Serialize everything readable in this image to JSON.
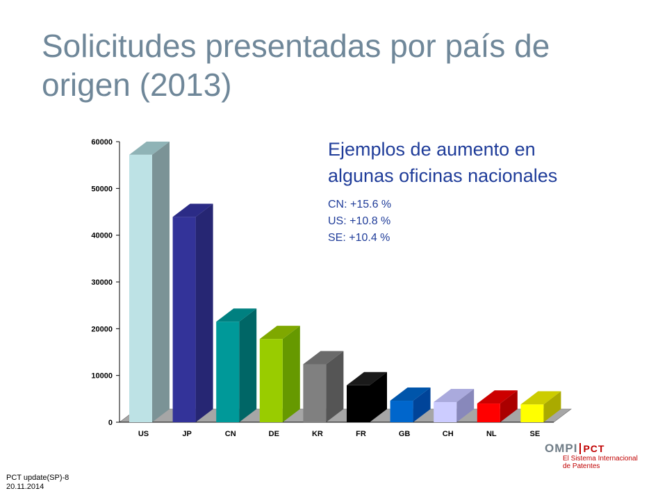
{
  "slide": {
    "title": "Solicitudes presentadas por país de origen (2013)"
  },
  "annotation": {
    "heading_line1": "Ejemplos de aumento en",
    "heading_line2": "algunas oficinas nacionales",
    "items": [
      "CN: +15.6 %",
      "US: +10.8 %",
      "SE: +10.4 %"
    ]
  },
  "logo": {
    "mark": "OMPI",
    "pct": "PCT",
    "subtitle_line1": "El Sistema Internacional",
    "subtitle_line2": "de Patentes"
  },
  "footer": {
    "ref": "PCT update(SP)-8",
    "date": "20.11.2014"
  },
  "chart_data": {
    "type": "bar",
    "title": "",
    "xlabel": "",
    "ylabel": "",
    "categories": [
      "US",
      "JP",
      "CN",
      "DE",
      "KR",
      "FR",
      "GB",
      "CH",
      "NL",
      "SE"
    ],
    "values": [
      57200,
      43900,
      21500,
      17800,
      12400,
      7900,
      4600,
      4300,
      4000,
      3800
    ],
    "yticks": [
      0,
      10000,
      20000,
      30000,
      40000,
      50000,
      60000
    ],
    "ylim": [
      0,
      60000
    ],
    "grid": false,
    "legend": "none",
    "colors": [
      {
        "front": "#bde2e5",
        "side": "#7b9396",
        "top": "#8fb3b6"
      },
      {
        "front": "#333399",
        "side": "#262673",
        "top": "#2b2b86"
      },
      {
        "front": "#009999",
        "side": "#006666",
        "top": "#008080"
      },
      {
        "front": "#99cc00",
        "side": "#669900",
        "top": "#7fa800"
      },
      {
        "front": "#808080",
        "side": "#555555",
        "top": "#6a6a6a"
      },
      {
        "front": "#000000",
        "side": "#000000",
        "top": "#1a1a1a"
      },
      {
        "front": "#0066cc",
        "side": "#004499",
        "top": "#0055aa"
      },
      {
        "front": "#ccccff",
        "side": "#8888bb",
        "top": "#aaaadd"
      },
      {
        "front": "#ff0000",
        "side": "#aa0000",
        "top": "#cc0000"
      },
      {
        "front": "#ffff00",
        "side": "#aaaa00",
        "top": "#cccc00"
      }
    ]
  }
}
